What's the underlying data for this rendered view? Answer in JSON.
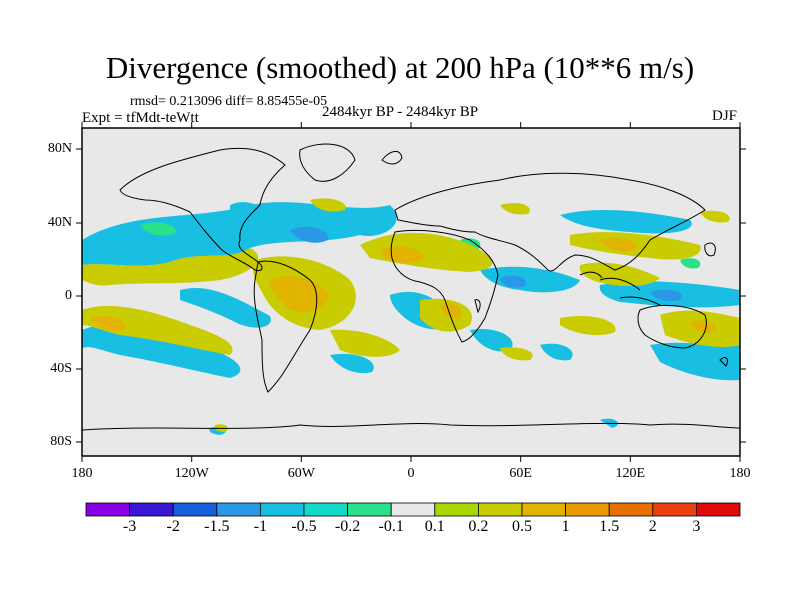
{
  "title": "Divergence (smoothed) at 200 hPa (10**6 m/s)",
  "stats": "rmsd= 0.213096 diff= 8.85455e-05",
  "experiment": "Expt = tfMdt-teWtt",
  "period": "2484kyr BP - 2484kyr BP",
  "season": "DJF",
  "map": {
    "lon_ticks": [
      "180",
      "120W",
      "60W",
      "0",
      "60E",
      "120E",
      "180"
    ],
    "lat_ticks": [
      "80N",
      "40N",
      "0",
      "40S",
      "80S"
    ],
    "background_color": "#e8e8e8"
  },
  "colorbar": {
    "colors": [
      "#8a00e6",
      "#3a18d2",
      "#1560dc",
      "#2a98e6",
      "#19bfe2",
      "#14d8c8",
      "#2ae088",
      "#e8e8e8",
      "#a8d800",
      "#c8cc00",
      "#e0b400",
      "#e89a00",
      "#e87000",
      "#e84010",
      "#e00a0a"
    ],
    "labels": [
      "-3",
      "-2",
      "-1.5",
      "-1",
      "-0.5",
      "-0.2",
      "-0.1",
      "0.1",
      "0.2",
      "0.5",
      "1",
      "1.5",
      "2",
      "3"
    ]
  }
}
